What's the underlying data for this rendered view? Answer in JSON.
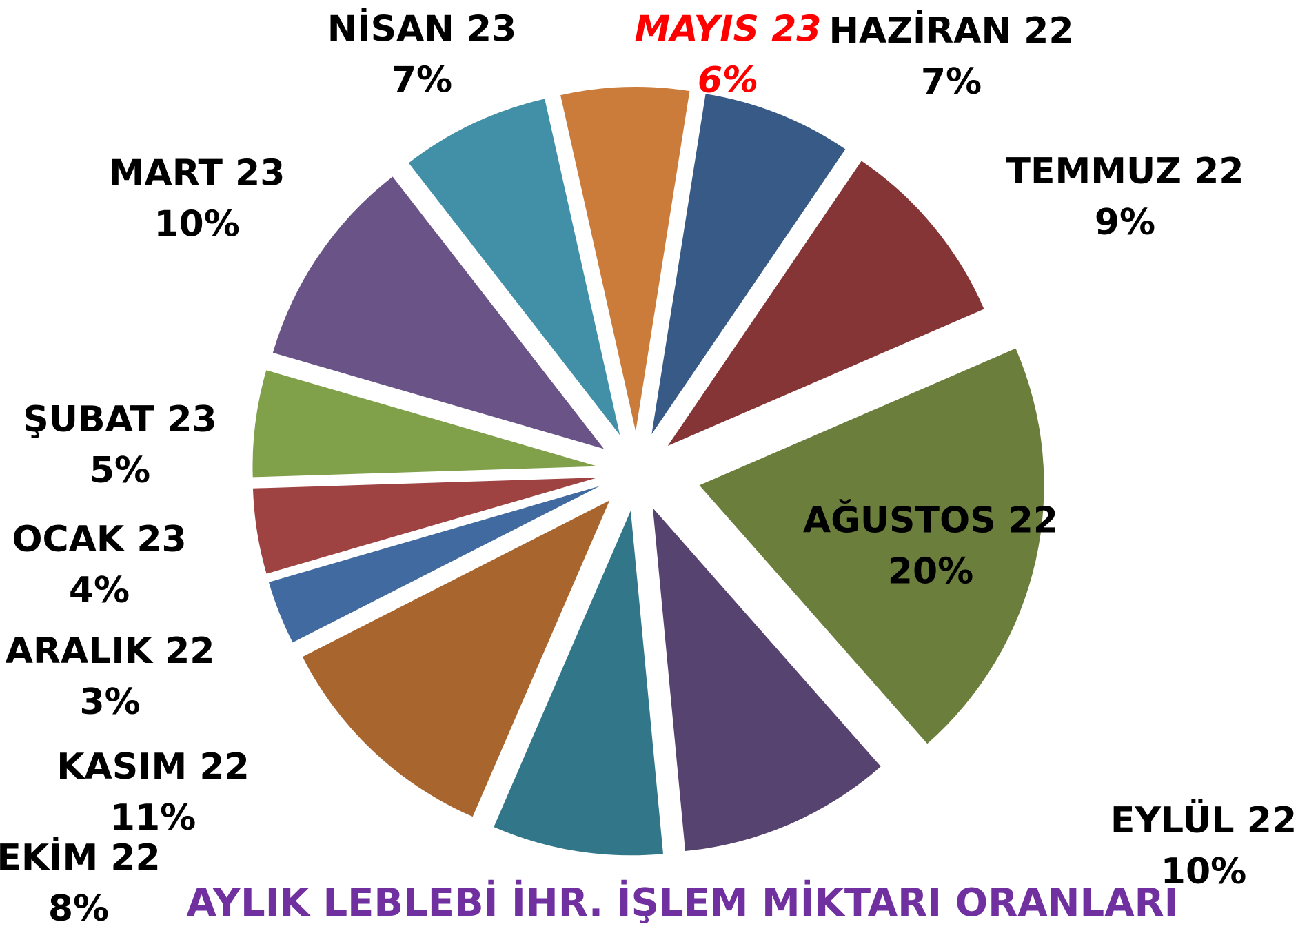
{
  "chart_data": {
    "type": "pie",
    "title": "AYLIK LEBLEBİ İHR. İŞLEM MİKTARI ORANLARI",
    "categories": [
      "HAZİRAN 22",
      "TEMMUZ 22",
      "AĞUSTOS 22",
      "EYLÜL 22",
      "EKİM 22",
      "KASIM 22",
      "ARALIK 22",
      "OCAK 23",
      "ŞUBAT 23",
      "MART 23",
      "NİSAN 23",
      "MAYIS 23"
    ],
    "values": [
      7,
      9,
      20,
      10,
      8,
      11,
      3,
      4,
      5,
      10,
      7,
      6
    ],
    "value_labels": [
      "7%",
      "9%",
      "20%",
      "10%",
      "8%",
      "11%",
      "3%",
      "4%",
      "5%",
      "10%",
      "7%",
      "6%"
    ],
    "colors": [
      "#375a87",
      "#853535",
      "#6b7e3c",
      "#57436f",
      "#32768a",
      "#a8652e",
      "#416ba0",
      "#9e4242",
      "#80a04a",
      "#6a5387",
      "#4190a7",
      "#cb7b3a"
    ],
    "highlight": 11
  }
}
